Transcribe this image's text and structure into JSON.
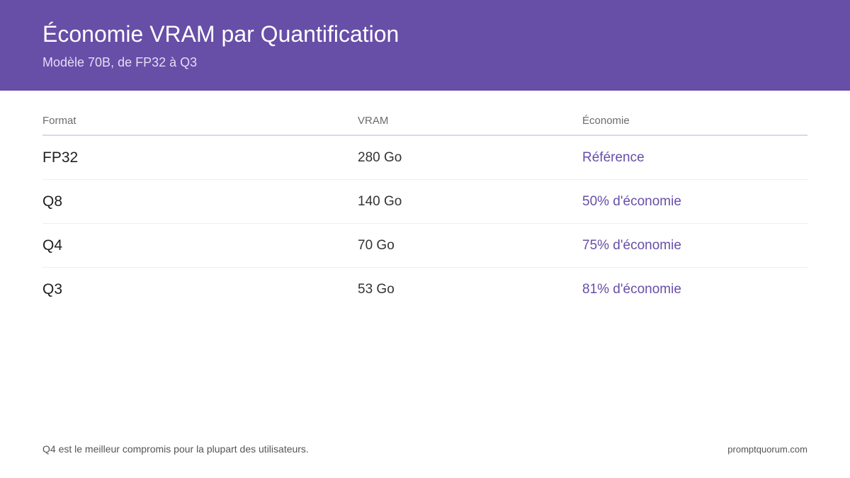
{
  "header": {
    "title": "Économie VRAM par Quantification",
    "subtitle": "Modèle 70B, de FP32 à Q3"
  },
  "table": {
    "columns": [
      "Format",
      "VRAM",
      "Économie"
    ],
    "rows": [
      {
        "format": "FP32",
        "vram": "280 Go",
        "savings": "Référence"
      },
      {
        "format": "Q8",
        "vram": "140 Go",
        "savings": "50% d'économie"
      },
      {
        "format": "Q4",
        "vram": "70 Go",
        "savings": "75% d'économie"
      },
      {
        "format": "Q3",
        "vram": "53 Go",
        "savings": "81% d'économie"
      }
    ]
  },
  "footer": {
    "note": "Q4 est le meilleur compromis pour la plupart des utilisateurs.",
    "site": "promptquorum.com"
  },
  "colors": {
    "header_bg": "#674ea7",
    "accent": "#674ea7"
  }
}
